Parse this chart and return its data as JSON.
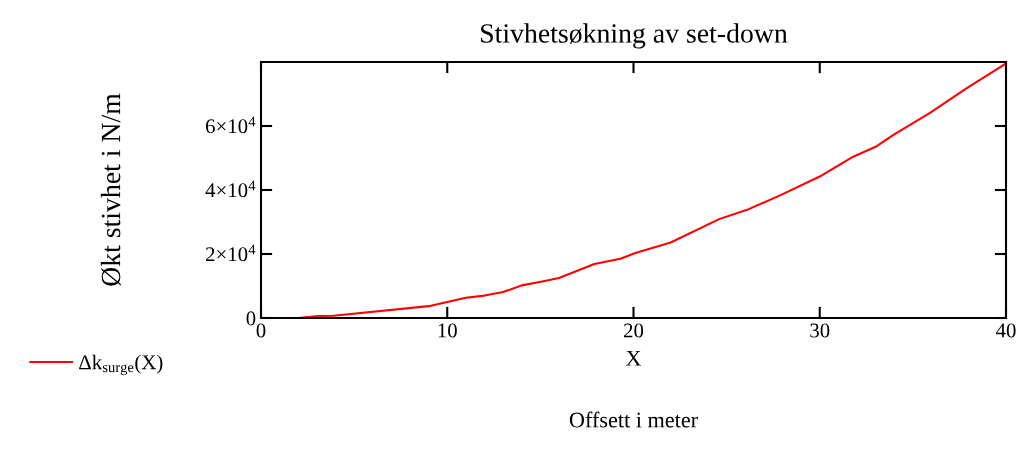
{
  "chart_data": {
    "type": "line",
    "title": "Stivhetsøkning av set-down",
    "xlabel": "X",
    "ylabel": "Økt stivhet i N/m",
    "annotations": [
      "Offsett i meter"
    ],
    "series": [
      {
        "name": "Δk$_{surge}$(X)",
        "color": "#ff0000",
        "x": [
          0,
          2,
          3.1,
          3.9,
          9,
          11,
          12,
          13,
          14,
          15.1,
          16,
          17.9,
          19.3,
          20.1,
          22,
          24.6,
          26.1,
          27.9,
          30,
          31.8,
          33,
          34,
          35.9,
          37.9,
          40
        ],
        "values": [
          0,
          0,
          600,
          700,
          3700,
          6300,
          7000,
          8100,
          10200,
          11400,
          12500,
          16900,
          18500,
          20300,
          23600,
          30900,
          33800,
          38400,
          44200,
          50400,
          53500,
          57400,
          64000,
          71800,
          79500
        ]
      }
    ],
    "xlim": [
      0,
      40
    ],
    "xticks": [
      0,
      10,
      20,
      30,
      40
    ],
    "ylim": [
      0,
      80000
    ],
    "yticks": [
      0,
      {
        "value": 20000,
        "label": "2×10$^{4}$"
      },
      {
        "value": 40000,
        "label": "4×10$^{4}$"
      },
      {
        "value": 60000,
        "label": "6×10$^{4}$"
      }
    ],
    "grid": false,
    "legend": "left",
    "marker": "none",
    "line_style": "solid"
  }
}
